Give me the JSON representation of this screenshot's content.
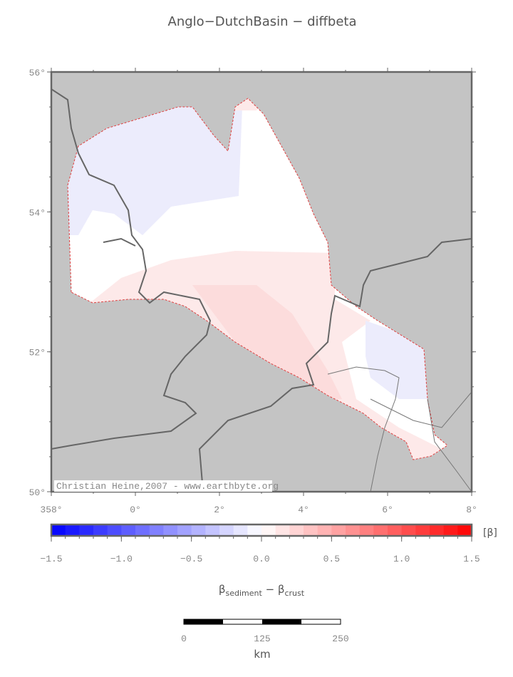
{
  "header": {
    "title": "Anglo−DutchBasin − diffbeta"
  },
  "map": {
    "lat_labels": [
      "56°",
      "54°",
      "52°",
      "50°"
    ],
    "lon_labels": [
      "358°",
      "0°",
      "2°",
      "4°",
      "6°",
      "8°"
    ],
    "credit": "Christian Heine,2007 - www.earthbyte.org"
  },
  "colorbar": {
    "unit": "[β]",
    "ticks": [
      "−1.5",
      "−1.0",
      "−0.5",
      "0.0",
      "0.5",
      "1.0",
      "1.5"
    ],
    "label": {
      "symbol1": "β",
      "sub1": "sediment",
      "op": " − ",
      "symbol2": "β",
      "sub2": "crust"
    }
  },
  "scalebar": {
    "ticks": [
      "0",
      "125",
      "250"
    ],
    "unit": "km"
  }
}
